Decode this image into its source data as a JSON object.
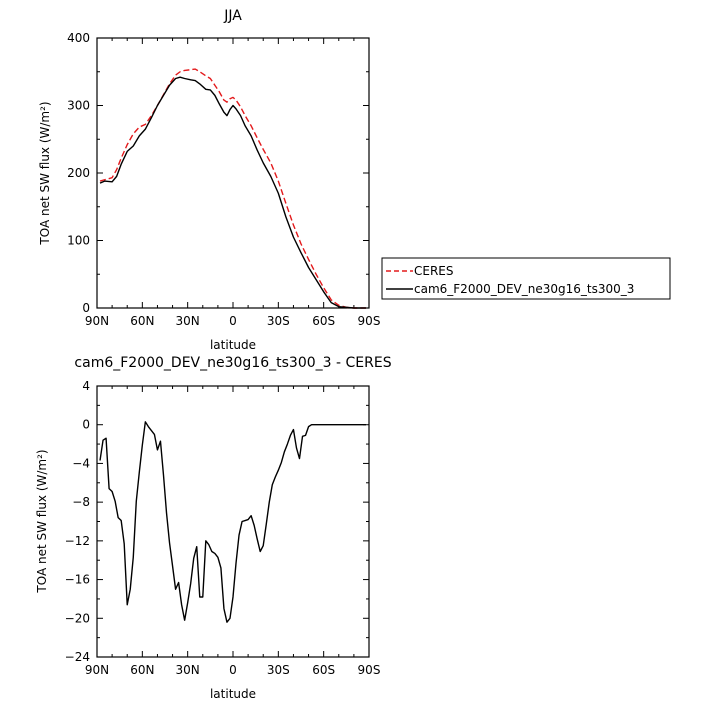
{
  "chart_data": [
    {
      "type": "line",
      "title": "JJA",
      "xlabel": "latitude",
      "ylabel": "TOA net SW flux (W/m²)",
      "xlim": [
        90,
        -90
      ],
      "ylim": [
        0,
        400
      ],
      "x_ticks": [
        90,
        60,
        30,
        0,
        -30,
        -60,
        -90
      ],
      "x_tick_labels": [
        "90N",
        "60N",
        "30N",
        "0",
        "30S",
        "60S",
        "90S"
      ],
      "y_ticks": [
        0,
        100,
        200,
        300,
        400
      ],
      "y_tick_labels": [
        "0",
        "100",
        "200",
        "300",
        "400"
      ],
      "grid": false,
      "legend": "right",
      "series": [
        {
          "name": "CERES",
          "color": "#e31a1c",
          "style": "dashed",
          "x": [
            88,
            85,
            80,
            77,
            74,
            70,
            66,
            62,
            58,
            54,
            50,
            46,
            42,
            38,
            35,
            32,
            28,
            25,
            22,
            18,
            15,
            12,
            9,
            6,
            4,
            2,
            0,
            -2,
            -5,
            -8,
            -12,
            -16,
            -20,
            -25,
            -30,
            -35,
            -40,
            -45,
            -50,
            -55,
            -60,
            -65,
            -70,
            -75,
            -80,
            -85,
            -88
          ],
          "y": [
            188,
            190,
            193,
            205,
            222,
            242,
            258,
            268,
            272,
            285,
            300,
            316,
            332,
            345,
            350,
            352,
            353,
            354,
            350,
            344,
            340,
            330,
            320,
            308,
            305,
            310,
            312,
            308,
            298,
            285,
            270,
            252,
            235,
            215,
            188,
            155,
            123,
            95,
            72,
            50,
            30,
            12,
            4,
            1,
            0,
            0,
            0
          ]
        },
        {
          "name": "cam6_F2000_DEV_ne30g16_ts300_3",
          "color": "#000000",
          "style": "solid",
          "x": [
            88,
            85,
            80,
            77,
            74,
            70,
            66,
            62,
            58,
            54,
            50,
            46,
            42,
            38,
            35,
            32,
            28,
            25,
            22,
            18,
            15,
            12,
            9,
            6,
            4,
            2,
            0,
            -2,
            -5,
            -8,
            -12,
            -16,
            -20,
            -25,
            -30,
            -35,
            -40,
            -45,
            -50,
            -55,
            -60,
            -65,
            -70,
            -75,
            -80,
            -85,
            -88
          ],
          "y": [
            185,
            188,
            187,
            195,
            213,
            232,
            240,
            255,
            265,
            282,
            300,
            315,
            330,
            340,
            342,
            340,
            338,
            337,
            332,
            324,
            323,
            315,
            302,
            290,
            285,
            294,
            300,
            295,
            285,
            270,
            255,
            234,
            215,
            195,
            170,
            135,
            105,
            82,
            60,
            42,
            24,
            8,
            2,
            1,
            0,
            0,
            0
          ]
        }
      ]
    },
    {
      "type": "line",
      "title": "cam6_F2000_DEV_ne30g16_ts300_3 - CERES",
      "xlabel": "latitude",
      "ylabel": "TOA net SW flux (W/m²)",
      "xlim": [
        90,
        -90
      ],
      "ylim": [
        -24,
        4
      ],
      "x_ticks": [
        90,
        60,
        30,
        0,
        -30,
        -60,
        -90
      ],
      "x_tick_labels": [
        "90N",
        "60N",
        "30N",
        "0",
        "30S",
        "60S",
        "90S"
      ],
      "y_ticks": [
        4,
        0,
        -4,
        -8,
        -12,
        -16,
        -20,
        -24
      ],
      "y_tick_labels": [
        "4",
        "0",
        "−4",
        "−8",
        "−12",
        "−16",
        "−20",
        "−24"
      ],
      "grid": false,
      "series": [
        {
          "color": "#000000",
          "style": "solid",
          "x": [
            88,
            86,
            84,
            82,
            80,
            78,
            76,
            74,
            72,
            70,
            68,
            66,
            64,
            62,
            60,
            58,
            56,
            54,
            52,
            50,
            48,
            46,
            44,
            42,
            40,
            38,
            36,
            34,
            32,
            30,
            28,
            26,
            24,
            22,
            20,
            18,
            16,
            14,
            12,
            10,
            8,
            6,
            4,
            2,
            0,
            -2,
            -4,
            -6,
            -8,
            -10,
            -12,
            -14,
            -16,
            -18,
            -20,
            -22,
            -24,
            -26,
            -28,
            -30,
            -32,
            -34,
            -36,
            -38,
            -40,
            -42,
            -44,
            -46,
            -48,
            -50,
            -52,
            -54,
            -56,
            -58,
            -60,
            -62,
            -64,
            -66,
            -68,
            -70,
            -72,
            -74,
            -76,
            -78,
            -80,
            -82,
            -84,
            -86,
            -88
          ],
          "y": [
            -3.7,
            -1.6,
            -1.4,
            -6.6,
            -6.9,
            -7.9,
            -9.6,
            -9.9,
            -12.3,
            -18.6,
            -17.0,
            -13.7,
            -7.9,
            -4.9,
            -2.1,
            0.3,
            -0.2,
            -0.6,
            -1.0,
            -2.6,
            -1.7,
            -5.2,
            -9.1,
            -12.2,
            -14.6,
            -17.0,
            -16.3,
            -18.6,
            -20.2,
            -18.4,
            -16.4,
            -13.8,
            -12.6,
            -17.8,
            -17.8,
            -12.0,
            -12.4,
            -13.1,
            -13.3,
            -13.7,
            -14.8,
            -19.0,
            -20.4,
            -20.0,
            -17.8,
            -14.3,
            -11.4,
            -10.0,
            -9.9,
            -9.8,
            -9.4,
            -10.4,
            -11.8,
            -13.1,
            -12.5,
            -10.3,
            -8.0,
            -6.2,
            -5.4,
            -4.7,
            -3.9,
            -2.8,
            -2.0,
            -1.1,
            -0.5,
            -2.4,
            -3.5,
            -1.2,
            -1.1,
            -0.2,
            0.0,
            0.0,
            0.0,
            0.0,
            0.0,
            0.0,
            0.0,
            0.0,
            0.0,
            0.0,
            0.0,
            0.0,
            0.0,
            0.0,
            0.0,
            0.0,
            0.0,
            0.0,
            0.0
          ]
        }
      ]
    }
  ]
}
